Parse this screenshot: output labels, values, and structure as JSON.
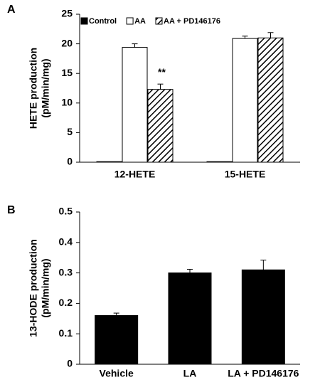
{
  "chart_data": [
    {
      "type": "bar",
      "panel_label": "A",
      "y_label": [
        "HETE production",
        "(pM/min/mg)"
      ],
      "categories": [
        "12-HETE",
        "15-HETE"
      ],
      "series": [
        {
          "name": "Control",
          "color": "#000000",
          "values": [
            0.1,
            0.1
          ],
          "errors": [
            0,
            0
          ]
        },
        {
          "name": "AA",
          "color": "#ffffff",
          "values": [
            19.4,
            20.9
          ],
          "errors": [
            0.6,
            0.4
          ]
        },
        {
          "name": "AA + PD146176",
          "color": "#000000",
          "pattern": "hatch",
          "values": [
            12.3,
            21.0
          ],
          "errors": [
            0.9,
            0.9
          ]
        }
      ],
      "annotations": [
        "**"
      ],
      "ylim": [
        0,
        25
      ],
      "yticks": [
        0,
        5,
        10,
        15,
        20,
        25
      ],
      "legend": "top"
    },
    {
      "type": "bar",
      "panel_label": "B",
      "y_label": [
        "13-HODE production",
        "(pM/min/mg)"
      ],
      "categories": [
        "Vehicle",
        "LA",
        "LA + PD146176"
      ],
      "series": [
        {
          "color": "#000000",
          "values": [
            0.16,
            0.3,
            0.31
          ],
          "errors": [
            0.008,
            0.012,
            0.032
          ]
        }
      ],
      "ylim": [
        0,
        0.5
      ],
      "yticks": [
        0,
        0.1,
        0.2,
        0.3,
        0.4,
        0.5
      ]
    }
  ]
}
